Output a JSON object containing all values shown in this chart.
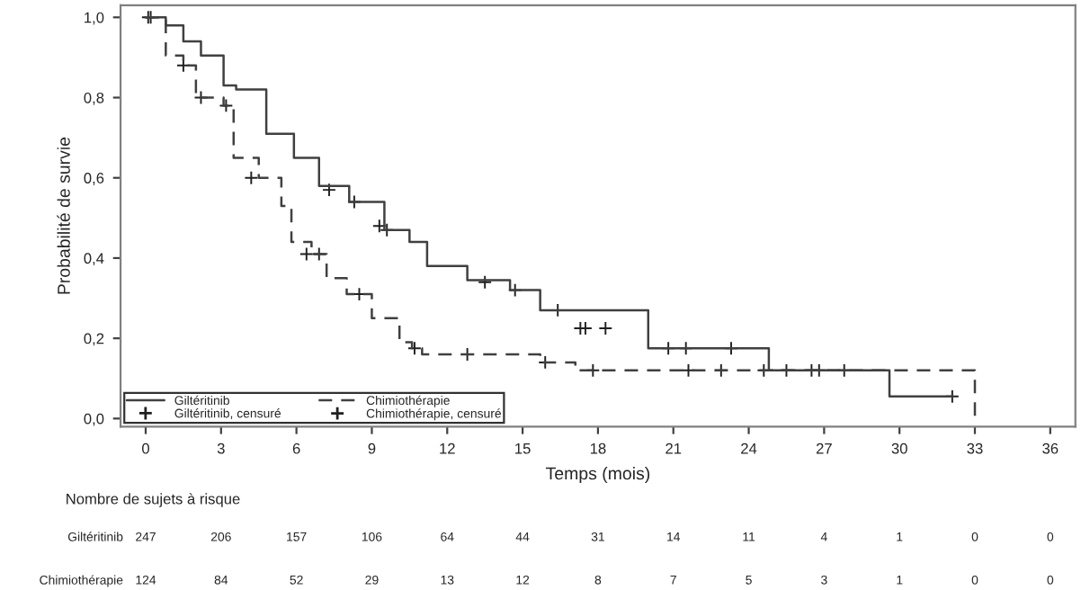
{
  "chart_data": {
    "type": "step",
    "xlabel": "Temps (mois)",
    "ylabel": "Probabilité de survie",
    "xlim": [
      -1,
      37
    ],
    "ylim": [
      -0.02,
      1.03
    ],
    "xticks": [
      0,
      3,
      6,
      9,
      12,
      15,
      18,
      21,
      24,
      27,
      30,
      33,
      36
    ],
    "yticks": [
      {
        "value": 0,
        "label": "0,0"
      },
      {
        "value": 0.2,
        "label": "0,2"
      },
      {
        "value": 0.4,
        "label": "0,4"
      },
      {
        "value": 0.6,
        "label": "0,6"
      },
      {
        "value": 0.8,
        "label": "0,8"
      },
      {
        "value": 1.0,
        "label": "1,0"
      }
    ],
    "grid": false,
    "legend": "bottom left",
    "series": [
      {
        "name": "Giltéritinib",
        "type": "step",
        "line_style": "solid",
        "color": "#404040",
        "x": [
          0,
          0.8,
          1.5,
          2.2,
          3.1,
          3.6,
          4.8,
          5.9,
          6.9,
          8.1,
          9.5,
          10.5,
          11.2,
          12.8,
          14.5,
          15.7,
          20.0,
          24.8,
          29.6,
          32.1
        ],
        "values": [
          1.0,
          0.98,
          0.94,
          0.905,
          0.83,
          0.82,
          0.71,
          0.65,
          0.58,
          0.54,
          0.47,
          0.44,
          0.38,
          0.345,
          0.32,
          0.27,
          0.175,
          0.12,
          0.055,
          0.055
        ]
      },
      {
        "name": "Chimiothérapie",
        "type": "step",
        "line_style": "dashed",
        "color": "#404040",
        "x": [
          0,
          0.8,
          1.5,
          2.0,
          3.1,
          3.5,
          4.5,
          5.4,
          5.8,
          6.6,
          7.2,
          8.0,
          9.0,
          10.1,
          10.6,
          11.0,
          15.7,
          17.1,
          33.0,
          33.0
        ],
        "values": [
          1.0,
          0.905,
          0.88,
          0.8,
          0.78,
          0.65,
          0.6,
          0.53,
          0.44,
          0.41,
          0.35,
          0.31,
          0.25,
          0.19,
          0.175,
          0.16,
          0.14,
          0.12,
          0.12,
          0
        ]
      },
      {
        "name": "Giltéritinib, censuré",
        "type": "scatter",
        "marker": "cross",
        "color": "#202020",
        "x": [
          0.1,
          7.3,
          8.3,
          9.3,
          9.6,
          13.5,
          14.7,
          16.4,
          17.3,
          17.5,
          18.3,
          20.8,
          21.5,
          23.3,
          24.6,
          25.5,
          26.5,
          26.8,
          32.1
        ],
        "values": [
          1.0,
          0.57,
          0.54,
          0.48,
          0.47,
          0.34,
          0.32,
          0.27,
          0.225,
          0.225,
          0.225,
          0.175,
          0.175,
          0.175,
          0.12,
          0.12,
          0.12,
          0.12,
          0.055
        ]
      },
      {
        "name": "Chimiothérapie, censuré",
        "type": "scatter",
        "marker": "cross",
        "color": "#202020",
        "x": [
          0.2,
          1.5,
          2.2,
          3.2,
          4.2,
          6.4,
          6.9,
          8.5,
          10.7,
          12.8,
          15.9,
          17.8,
          21.6,
          22.9,
          27.8
        ],
        "values": [
          1.0,
          0.88,
          0.8,
          0.78,
          0.6,
          0.41,
          0.41,
          0.31,
          0.175,
          0.16,
          0.14,
          0.12,
          0.12,
          0.12,
          0.12
        ]
      }
    ],
    "annotations": [
      "Nombre de sujets à risque",
      "Giltéritinib",
      "247",
      "206",
      "157",
      "106",
      "64",
      "44",
      "31",
      "14",
      "11",
      "4",
      "1",
      "0",
      "0",
      "Chimiothérapie",
      "124",
      "84",
      "52",
      "29",
      "13",
      "12",
      "8",
      "7",
      "5",
      "3",
      "1",
      "0",
      "0"
    ]
  }
}
